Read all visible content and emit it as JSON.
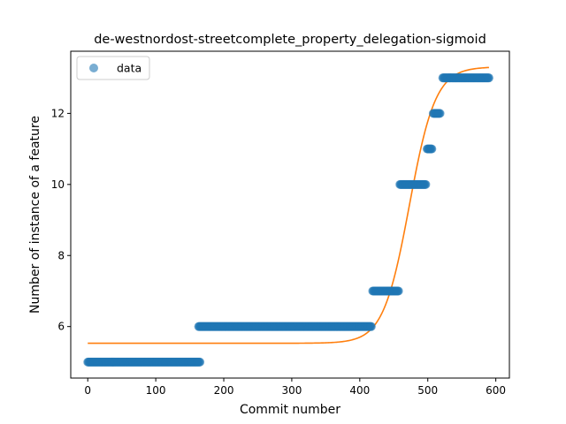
{
  "chart_data": {
    "type": "scatter",
    "title": "de-westnordost-streetcomplete_property_delegation-sigmoid",
    "xlabel": "Commit number",
    "ylabel": "Number of instance of a feature",
    "xlim": [
      -25,
      620
    ],
    "ylim": [
      4.55,
      13.75
    ],
    "xticks": [
      0,
      100,
      200,
      300,
      400,
      500,
      600
    ],
    "yticks": [
      6,
      8,
      10,
      12
    ],
    "legend": {
      "entries": [
        "data"
      ],
      "placement": "upper-left"
    },
    "colors": {
      "data": "#1f77b4",
      "fit": "#ff7f0e"
    },
    "series": [
      {
        "name": "data",
        "kind": "scatter",
        "segments": [
          {
            "x_start": 0,
            "x_end": 165,
            "y": 5
          },
          {
            "x_start": 163,
            "x_end": 417,
            "y": 6
          },
          {
            "x_start": 419,
            "x_end": 457,
            "y": 7
          },
          {
            "x_start": 459,
            "x_end": 497,
            "y": 10
          },
          {
            "x_start": 499,
            "x_end": 506,
            "y": 11
          },
          {
            "x_start": 508,
            "x_end": 518,
            "y": 12
          },
          {
            "x_start": 522,
            "x_end": 590,
            "y": 13
          }
        ]
      },
      {
        "kind": "line",
        "model": "sigmoid",
        "params": {
          "L": 7.78,
          "x0": 473,
          "k": 0.052,
          "b": 5.53
        },
        "x_range": [
          0,
          590
        ]
      }
    ]
  }
}
